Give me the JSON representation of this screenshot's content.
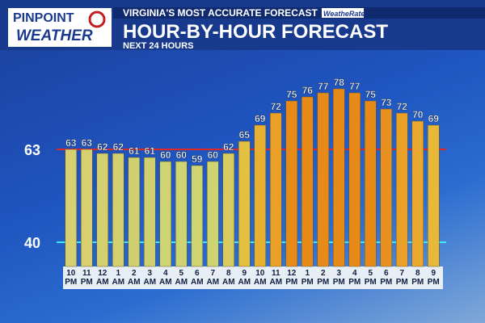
{
  "branding": {
    "logo_top": "PINPOINT",
    "logo_bottom": "WEATHER",
    "tagline": "VIRGINIA'S MOST ACCURATE FORECAST",
    "badge": "WeatheRate"
  },
  "chart_data": {
    "type": "bar",
    "title": "HOUR-BY-HOUR FORECAST",
    "subtitle": "NEXT 24 HOURS",
    "categories": [
      "10 PM",
      "11 PM",
      "12 AM",
      "1 AM",
      "2 AM",
      "3 AM",
      "4 AM",
      "5 AM",
      "6 AM",
      "7 AM",
      "8 AM",
      "9 AM",
      "10 AM",
      "11 AM",
      "12 PM",
      "1 PM",
      "2 PM",
      "3 PM",
      "4 PM",
      "5 PM",
      "6 PM",
      "7 PM",
      "8 PM",
      "9 PM"
    ],
    "values": [
      63,
      63,
      62,
      62,
      61,
      61,
      60,
      60,
      59,
      60,
      62,
      65,
      69,
      72,
      75,
      76,
      77,
      78,
      77,
      75,
      73,
      72,
      70,
      69
    ],
    "colors": [
      "#d8d070",
      "#d8d070",
      "#d4d070",
      "#d4d070",
      "#d0d070",
      "#d0d070",
      "#cfd472",
      "#cfd472",
      "#cfd472",
      "#cfd472",
      "#d8cc60",
      "#e4c040",
      "#e8b030",
      "#eaa028",
      "#e88a18",
      "#e88a18",
      "#e88a18",
      "#e88a18",
      "#e88a18",
      "#e88a18",
      "#e89020",
      "#eaa028",
      "#eaa830",
      "#e8b838"
    ],
    "ylim": [
      34,
      84
    ],
    "reference_lines": [
      {
        "value": 63,
        "color": "#e02828"
      },
      {
        "value": 40,
        "color": "#40e8f8"
      }
    ]
  }
}
